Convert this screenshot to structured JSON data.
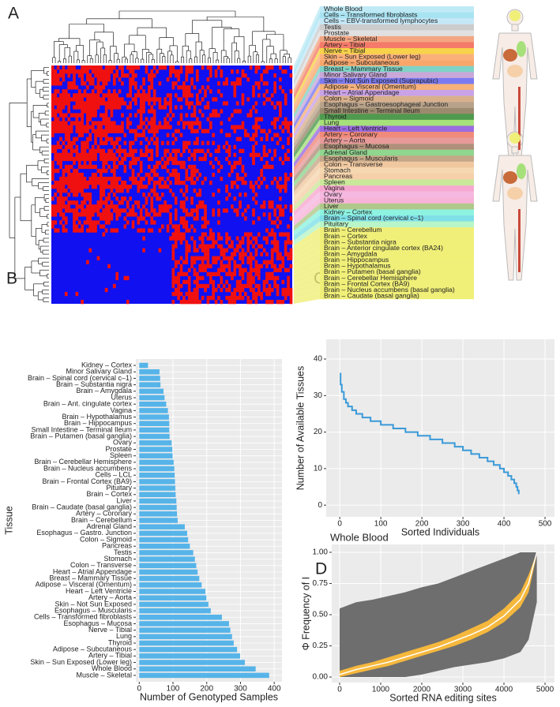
{
  "figure": {
    "panel_labels": [
      "A",
      "B",
      "C",
      "D"
    ]
  },
  "panel_a": {
    "tissues": [
      {
        "name": "Whole Blood",
        "color": "#bfeaf5"
      },
      {
        "name": "Cells – Transformed fibroblasts",
        "color": "#a8e3f2"
      },
      {
        "name": "Cells – EBV-transformed lymphocytes",
        "color": "#c5e8f7"
      },
      {
        "name": "Testis",
        "color": "#cccccc"
      },
      {
        "name": "Prostate",
        "color": "#e0e0e0"
      },
      {
        "name": "Muscle – Skeletal",
        "color": "#f4a582"
      },
      {
        "name": "Artery – Tibial",
        "color": "#f47a6a"
      },
      {
        "name": "Nerve – Tibial",
        "color": "#f7d24a"
      },
      {
        "name": "Skin – Sun Exposed (Lower leg)",
        "color": "#fbb07a"
      },
      {
        "name": "Adipose – Subcutaneous",
        "color": "#f9a66b"
      },
      {
        "name": "Breast – Mammary Tissue",
        "color": "#7fd3c6"
      },
      {
        "name": "Minor Salivary Gland",
        "color": "#c9a8d9"
      },
      {
        "name": "Skin – Not Sun Exposed (Suprapubic)",
        "color": "#7b7bf0"
      },
      {
        "name": "Adipose – Visceral (Omentum)",
        "color": "#f6b27a"
      },
      {
        "name": "Heart – Atrial Appendage",
        "color": "#c9a2e8"
      },
      {
        "name": "Colon – Sigmoid",
        "color": "#d9b08c"
      },
      {
        "name": "Esophagus – Gastroesophageal Junction",
        "color": "#b8a28a"
      },
      {
        "name": "Small Intestine – Terminal Ileum",
        "color": "#9c8a6e"
      },
      {
        "name": "Thyroid",
        "color": "#4f9a4f"
      },
      {
        "name": "Lung",
        "color": "#a6e07a"
      },
      {
        "name": "Heart – Left Ventricle",
        "color": "#9b6be0"
      },
      {
        "name": "Artery – Coronary",
        "color": "#f08a7a"
      },
      {
        "name": "Artery – Aorta",
        "color": "#e89a9a"
      },
      {
        "name": "Esophagus – Mucosa",
        "color": "#b0907a"
      },
      {
        "name": "Adrenal Gland",
        "color": "#8fd68f"
      },
      {
        "name": "Esophagus – Muscularis",
        "color": "#c4a888"
      },
      {
        "name": "Colon – Transverse",
        "color": "#f0c8a0"
      },
      {
        "name": "Stomach",
        "color": "#f5d7b0"
      },
      {
        "name": "Pancreas",
        "color": "#f5d0a8"
      },
      {
        "name": "Spleen",
        "color": "#c9e89a"
      },
      {
        "name": "Vagina",
        "color": "#f7a8d0"
      },
      {
        "name": "Ovary",
        "color": "#f5b8e0"
      },
      {
        "name": "Uterus",
        "color": "#f7b3d8"
      },
      {
        "name": "Liver",
        "color": "#b0c88a"
      },
      {
        "name": "Kidney – Cortex",
        "color": "#8ef2e0"
      },
      {
        "name": "Brain – Spinal cord (cervical c–1)",
        "color": "#7fe0e8"
      },
      {
        "name": "Pituitary",
        "color": "#b8f5c8"
      },
      {
        "name": "Brain – Cerebellum",
        "color": "#f0ef78"
      },
      {
        "name": "Brain – Cortex",
        "color": "#f0ef78"
      },
      {
        "name": "Brain – Substantia nigra",
        "color": "#f0ef78"
      },
      {
        "name": "Brain – Anterior cingulate cortex (BA24)",
        "color": "#f0ef78"
      },
      {
        "name": "Brain – Amygdala",
        "color": "#f0ef78"
      },
      {
        "name": "Brain – Hippocampus",
        "color": "#f0ef78"
      },
      {
        "name": "Brain – Hypothalamus",
        "color": "#f0ef78"
      },
      {
        "name": "Brain – Putamen (basal ganglia)",
        "color": "#f0ef78"
      },
      {
        "name": "Brain – Cerebellar Hemisphere",
        "color": "#f0ef78"
      },
      {
        "name": "Brain – Frontal Cortex (BA9)",
        "color": "#f0ef78"
      },
      {
        "name": "Brain – Nucleus accumbens (basal ganglia)",
        "color": "#f0ef78"
      },
      {
        "name": "Brain – Caudate (basal ganglia)",
        "color": "#f0ef78"
      }
    ]
  },
  "chart_data": [
    {
      "type": "bar",
      "orientation": "horizontal",
      "color": "#56b4e9",
      "xlabel": "Number of Genotyped Samples",
      "ylabel": "Tissue",
      "categories": [
        "Kidney – Cortex",
        "Minor Salivary Gland",
        "Brain – Spinal cord (cervical c–1)",
        "Brain – Substantia nigra",
        "Brain – Amygdala",
        "Uterus",
        "Brain – Ant. cingulate cortex",
        "Vagina",
        "Brain – Hypothalamus",
        "Brain – Hippocampus",
        "Small Intestine – Terminal Ileum",
        "Brain – Putamen (basal ganglia)",
        "Ovary",
        "Prostate",
        "Spleen",
        "Brain – Cerebellar Hemisphere",
        "Brain – Nucleus accumbens",
        "Cells – LCL",
        "Brain – Frontal Cortex (BA9)",
        "Pituitary",
        "Brain – Cortex",
        "Liver",
        "Brain – Caudate (basal ganglia)",
        "Artery – Coronary",
        "Brain – Cerebellum",
        "Adrenal Gland",
        "Esophagus – Gastro. Junction",
        "Colon – Sigmoid",
        "Pancreas",
        "Testis",
        "Stomach",
        "Colon – Transverse",
        "Heart – Atrial Appendage",
        "Breast – Mammary Tissue",
        "Adipose – Visceral (Omentum)",
        "Heart – Left Ventricle",
        "Artery – Aorta",
        "Skin – Not Sun Exposed",
        "Esophagus – Muscularis",
        "Cells – Transformed fibroblasts",
        "Esophagus – Mucosa",
        "Nerve – Tibial",
        "Lung",
        "Thyroid",
        "Adipose – Subcutaneous",
        "Artery – Tibial",
        "Skin – Sun Exposed (Lower leg)",
        "Whole Blood",
        "Muscle – Skeletal"
      ],
      "values": [
        26,
        60,
        62,
        63,
        72,
        75,
        80,
        85,
        88,
        89,
        89,
        90,
        96,
        98,
        99,
        102,
        104,
        105,
        106,
        107,
        108,
        110,
        111,
        112,
        114,
        135,
        142,
        145,
        150,
        160,
        165,
        169,
        173,
        178,
        185,
        196,
        199,
        205,
        212,
        245,
        266,
        270,
        275,
        280,
        290,
        299,
        313,
        345,
        385
      ],
      "xlim": [
        -10,
        423
      ],
      "xticks": [
        0,
        100,
        200,
        300,
        400
      ],
      "grid": true
    },
    {
      "type": "line",
      "step": true,
      "color": "#3a9ad9",
      "xlabel": "Sorted Individuals",
      "ylabel": "Number of Available Tissues",
      "x": [
        0,
        2,
        5,
        10,
        15,
        20,
        30,
        40,
        55,
        75,
        100,
        130,
        160,
        190,
        220,
        250,
        280,
        300,
        320,
        340,
        360,
        375,
        390,
        400,
        410,
        418,
        425,
        430,
        433,
        436
      ],
      "values": [
        36,
        33,
        31,
        29,
        28,
        27,
        26,
        25,
        24,
        23,
        22,
        21,
        20,
        19,
        18,
        17,
        16,
        15,
        14,
        13,
        12,
        11,
        10,
        9,
        8,
        7,
        6,
        5,
        4,
        3
      ],
      "xlim": [
        -33,
        523
      ],
      "ylim": [
        -3.2,
        45.4
      ],
      "xticks": [
        0,
        100,
        200,
        300,
        400,
        500
      ],
      "yticks": [
        0,
        10,
        20,
        30,
        40
      ],
      "grid": true
    },
    {
      "type": "band",
      "title": "Whole Blood",
      "xlabel": "Sorted RNA editing sites",
      "ylabel": "Φ Frequency of I",
      "x": [
        0,
        400,
        800,
        1200,
        1600,
        2000,
        2400,
        2800,
        3200,
        3600,
        4000,
        4400,
        4600,
        4800
      ],
      "range_low": [
        0,
        0,
        0,
        0,
        0,
        0.02,
        0.05,
        0.08,
        0.1,
        0.12,
        0.15,
        0.2,
        0.3,
        0.6
      ],
      "range_high": [
        0.55,
        0.6,
        0.62,
        0.65,
        0.68,
        0.72,
        0.75,
        0.8,
        0.85,
        0.9,
        0.95,
        1.0,
        1.0,
        1.0
      ],
      "iqr_low": [
        0,
        0.03,
        0.06,
        0.09,
        0.13,
        0.17,
        0.21,
        0.25,
        0.3,
        0.36,
        0.44,
        0.56,
        0.68,
        0.98
      ],
      "iqr_high": [
        0.05,
        0.09,
        0.12,
        0.16,
        0.2,
        0.24,
        0.28,
        0.33,
        0.39,
        0.45,
        0.55,
        0.68,
        0.82,
        1.0
      ],
      "median": [
        0.02,
        0.06,
        0.09,
        0.12,
        0.16,
        0.2,
        0.24,
        0.29,
        0.34,
        0.4,
        0.49,
        0.62,
        0.75,
        1.0
      ],
      "range_color": "#6e6e6e",
      "iqr_color": "#f5b83d",
      "median_color": "#ffffff",
      "xlim": [
        -192,
        5230
      ],
      "ylim": [
        -0.044,
        1.063
      ],
      "xticks": [
        0,
        1000,
        2000,
        3000,
        4000,
        5000
      ],
      "yticks": [
        {
          "value": 0,
          "label": "0.00"
        },
        {
          "value": 0.25,
          "label": "0.25"
        },
        {
          "value": 0.5,
          "label": "0.50"
        },
        {
          "value": 0.75,
          "label": "0.75"
        },
        {
          "value": 1,
          "label": "1.00"
        }
      ],
      "grid": true
    }
  ]
}
